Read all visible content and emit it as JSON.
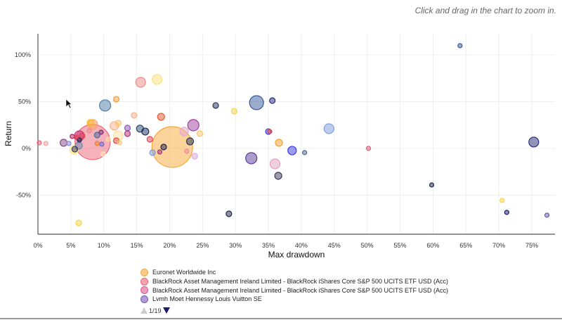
{
  "hint": "Click and drag in the chart to zoom in.",
  "chart_data": {
    "type": "bubble",
    "xlabel": "Max drawdown",
    "ylabel": "Return",
    "xlim": [
      0,
      78
    ],
    "ylim": [
      -92,
      125
    ],
    "xticks": [
      0,
      5,
      10,
      15,
      20,
      25,
      30,
      35,
      40,
      45,
      50,
      55,
      60,
      65,
      70,
      75
    ],
    "yticks": [
      -50,
      0,
      50,
      100
    ],
    "x_tick_labels": [
      "0%",
      "5%",
      "10%",
      "15%",
      "20%",
      "25%",
      "30%",
      "35%",
      "40%",
      "45%",
      "50%",
      "55%",
      "60%",
      "65%",
      "70%",
      "75%"
    ],
    "y_tick_labels": [
      "-50%",
      "0%",
      "50%",
      "100%"
    ],
    "grid": true,
    "points": [
      {
        "x": 20.4,
        "y": 1.5,
        "z": 29,
        "color": "#f7a738"
      },
      {
        "x": 8.3,
        "y": 6.8,
        "z": 25,
        "color": "#ee6677"
      },
      {
        "x": 15.6,
        "y": 70.7,
        "z": 7,
        "color": "#f08a8a"
      },
      {
        "x": 18.1,
        "y": 73.7,
        "z": 7,
        "color": "#fde27a"
      },
      {
        "x": 11.9,
        "y": 52.6,
        "z": 4,
        "color": "#f39c32"
      },
      {
        "x": 10.2,
        "y": 45.9,
        "z": 8,
        "color": "#4d7ea8"
      },
      {
        "x": 14.6,
        "y": 35.3,
        "z": 4,
        "color": "#f7b08a"
      },
      {
        "x": 18.7,
        "y": 33.8,
        "z": 5,
        "color": "#e8582f"
      },
      {
        "x": 29.8,
        "y": 39.8,
        "z": 4,
        "color": "#fcd44a"
      },
      {
        "x": 27.0,
        "y": 45.9,
        "z": 4,
        "color": "#26305e"
      },
      {
        "x": 33.2,
        "y": 48.9,
        "z": 10,
        "color": "#3a5a9a"
      },
      {
        "x": 35.6,
        "y": 51.1,
        "z": 4,
        "color": "#2c2a80"
      },
      {
        "x": 23.6,
        "y": 24.8,
        "z": 8,
        "color": "#9c3d9e"
      },
      {
        "x": 22.2,
        "y": 18.0,
        "z": 6,
        "color": "#e3a6d2"
      },
      {
        "x": 24.6,
        "y": 15.8,
        "z": 4,
        "color": "#fbc56e"
      },
      {
        "x": 23.1,
        "y": 7.5,
        "z": 5,
        "color": "#2c3a5e"
      },
      {
        "x": 19.1,
        "y": 1.5,
        "z": 4,
        "color": "#1e1e4e"
      },
      {
        "x": 22.6,
        "y": -3.0,
        "z": 3,
        "color": "#f08aa0"
      },
      {
        "x": 23.8,
        "y": -8.3,
        "z": 4,
        "color": "#dba6e0"
      },
      {
        "x": 17.4,
        "y": -4.5,
        "z": 4,
        "color": "#7a9ce0"
      },
      {
        "x": 18.5,
        "y": -3.8,
        "z": 3,
        "color": "#a03070"
      },
      {
        "x": 17.0,
        "y": 9.8,
        "z": 4,
        "color": "#e04050"
      },
      {
        "x": 15.5,
        "y": 21.1,
        "z": 5,
        "color": "#2c4a6e"
      },
      {
        "x": 16.3,
        "y": 18.0,
        "z": 5,
        "color": "#1e2e5e"
      },
      {
        "x": 13.6,
        "y": 21.8,
        "z": 4,
        "color": "#8a5ab8"
      },
      {
        "x": 13.6,
        "y": 15.8,
        "z": 4,
        "color": "#b0307a"
      },
      {
        "x": 11.6,
        "y": 24.1,
        "z": 6,
        "color": "#f7b08a"
      },
      {
        "x": 12.2,
        "y": 27.1,
        "z": 4,
        "color": "#fbc56e"
      },
      {
        "x": 12.2,
        "y": 13.5,
        "z": 7,
        "color": "#fde0a0"
      },
      {
        "x": 11.9,
        "y": 8.3,
        "z": 4,
        "color": "#e04848"
      },
      {
        "x": 12.4,
        "y": 6.0,
        "z": 3,
        "color": "#fbc56e"
      },
      {
        "x": 10.7,
        "y": 9.8,
        "z": 3,
        "color": "#fde0a0"
      },
      {
        "x": 9.9,
        "y": -6.0,
        "z": 3,
        "color": "#fdeab0"
      },
      {
        "x": 9.7,
        "y": 4.5,
        "z": 3,
        "color": "#6a6ad0"
      },
      {
        "x": 9.6,
        "y": 17.3,
        "z": 3,
        "color": "#7a2a7a"
      },
      {
        "x": 9.0,
        "y": 14.3,
        "z": 4,
        "color": "#4a6a9a"
      },
      {
        "x": 9.0,
        "y": 5.3,
        "z": 3,
        "color": "#f08030"
      },
      {
        "x": 8.3,
        "y": 25.6,
        "z": 7,
        "color": "#f7a070"
      },
      {
        "x": 8.0,
        "y": 27.1,
        "z": 5,
        "color": "#fbb820"
      },
      {
        "x": 7.8,
        "y": 18.8,
        "z": 3,
        "color": "#f08a8a"
      },
      {
        "x": 6.3,
        "y": 13.5,
        "z": 7,
        "color": "#c03080"
      },
      {
        "x": 6.7,
        "y": 13.5,
        "z": 4,
        "color": "#e04050"
      },
      {
        "x": 6.3,
        "y": 9.0,
        "z": 3,
        "color": "#1e2448"
      },
      {
        "x": 6.2,
        "y": 3.0,
        "z": 5,
        "color": "#6a8ab0"
      },
      {
        "x": 5.6,
        "y": -0.8,
        "z": 4,
        "color": "#3a3a5a"
      },
      {
        "x": 5.5,
        "y": -1.5,
        "z": 6,
        "color": "#fde27a"
      },
      {
        "x": 5.2,
        "y": 12.8,
        "z": 3,
        "color": "#b02060"
      },
      {
        "x": 5.8,
        "y": 12.0,
        "z": 3,
        "color": "#e04050"
      },
      {
        "x": 3.9,
        "y": 6.0,
        "z": 5,
        "color": "#8a4a8a"
      },
      {
        "x": 4.7,
        "y": 5.3,
        "z": 3,
        "color": "#8a8ad8"
      },
      {
        "x": 1.2,
        "y": 5.3,
        "z": 3,
        "color": "#f5a0a0"
      },
      {
        "x": 0.2,
        "y": 6.0,
        "z": 3,
        "color": "#ee6677"
      },
      {
        "x": 6.2,
        "y": -79.7,
        "z": 4,
        "color": "#fcd44a"
      },
      {
        "x": 29.0,
        "y": -69.9,
        "z": 4,
        "color": "#1e2448"
      },
      {
        "x": 32.4,
        "y": -10.5,
        "z": 8,
        "color": "#5a3a9a"
      },
      {
        "x": 36.0,
        "y": -16.5,
        "z": 7,
        "color": "#e0a0b8"
      },
      {
        "x": 36.5,
        "y": -29.3,
        "z": 5,
        "color": "#3a3a5a"
      },
      {
        "x": 35.0,
        "y": 18.0,
        "z": 4,
        "color": "#3a3ad8"
      },
      {
        "x": 35.2,
        "y": 18.0,
        "z": 3,
        "color": "#e04848"
      },
      {
        "x": 36.6,
        "y": 6.0,
        "z": 5,
        "color": "#f7a030"
      },
      {
        "x": 64.1,
        "y": 109.8,
        "z": 3,
        "color": "#3a5a9a"
      },
      {
        "x": 44.2,
        "y": 21.1,
        "z": 7,
        "color": "#7a9ce0"
      },
      {
        "x": 38.6,
        "y": -2.3,
        "z": 6,
        "color": "#3a3ae8"
      },
      {
        "x": 40.5,
        "y": -4.5,
        "z": 3,
        "color": "#4a6a8a"
      },
      {
        "x": 50.2,
        "y": 0.0,
        "z": 3,
        "color": "#e05a80"
      },
      {
        "x": 59.8,
        "y": -39.1,
        "z": 3,
        "color": "#1e2448"
      },
      {
        "x": 70.5,
        "y": -55.6,
        "z": 3,
        "color": "#fcd44a"
      },
      {
        "x": 71.2,
        "y": -68.4,
        "z": 3,
        "color": "#1e1e6e"
      },
      {
        "x": 75.3,
        "y": 6.8,
        "z": 7,
        "color": "#2a2a78"
      },
      {
        "x": 77.3,
        "y": -71.4,
        "z": 3,
        "color": "#6a5ab0"
      }
    ],
    "legend": {
      "placement": "bottom",
      "items": [
        {
          "name": "Euronet Worldwide Inc",
          "color": "#f7a738"
        },
        {
          "name": "BlackRock Asset Management Ireland Limited - BlackRock iShares Core S&P 500 UCITS ETF USD (Acc)",
          "color": "#ee6677"
        },
        {
          "name": "BlackRock Asset Management Ireland Limited - BlackRock iShares Core S&P 500 UCITS ETF USD (Acc)",
          "color": "#e05a90"
        },
        {
          "name": "Lvmh Moet Hennessy Louis Vuitton SE",
          "color": "#7a5ab8"
        }
      ],
      "page": "1/19"
    }
  }
}
